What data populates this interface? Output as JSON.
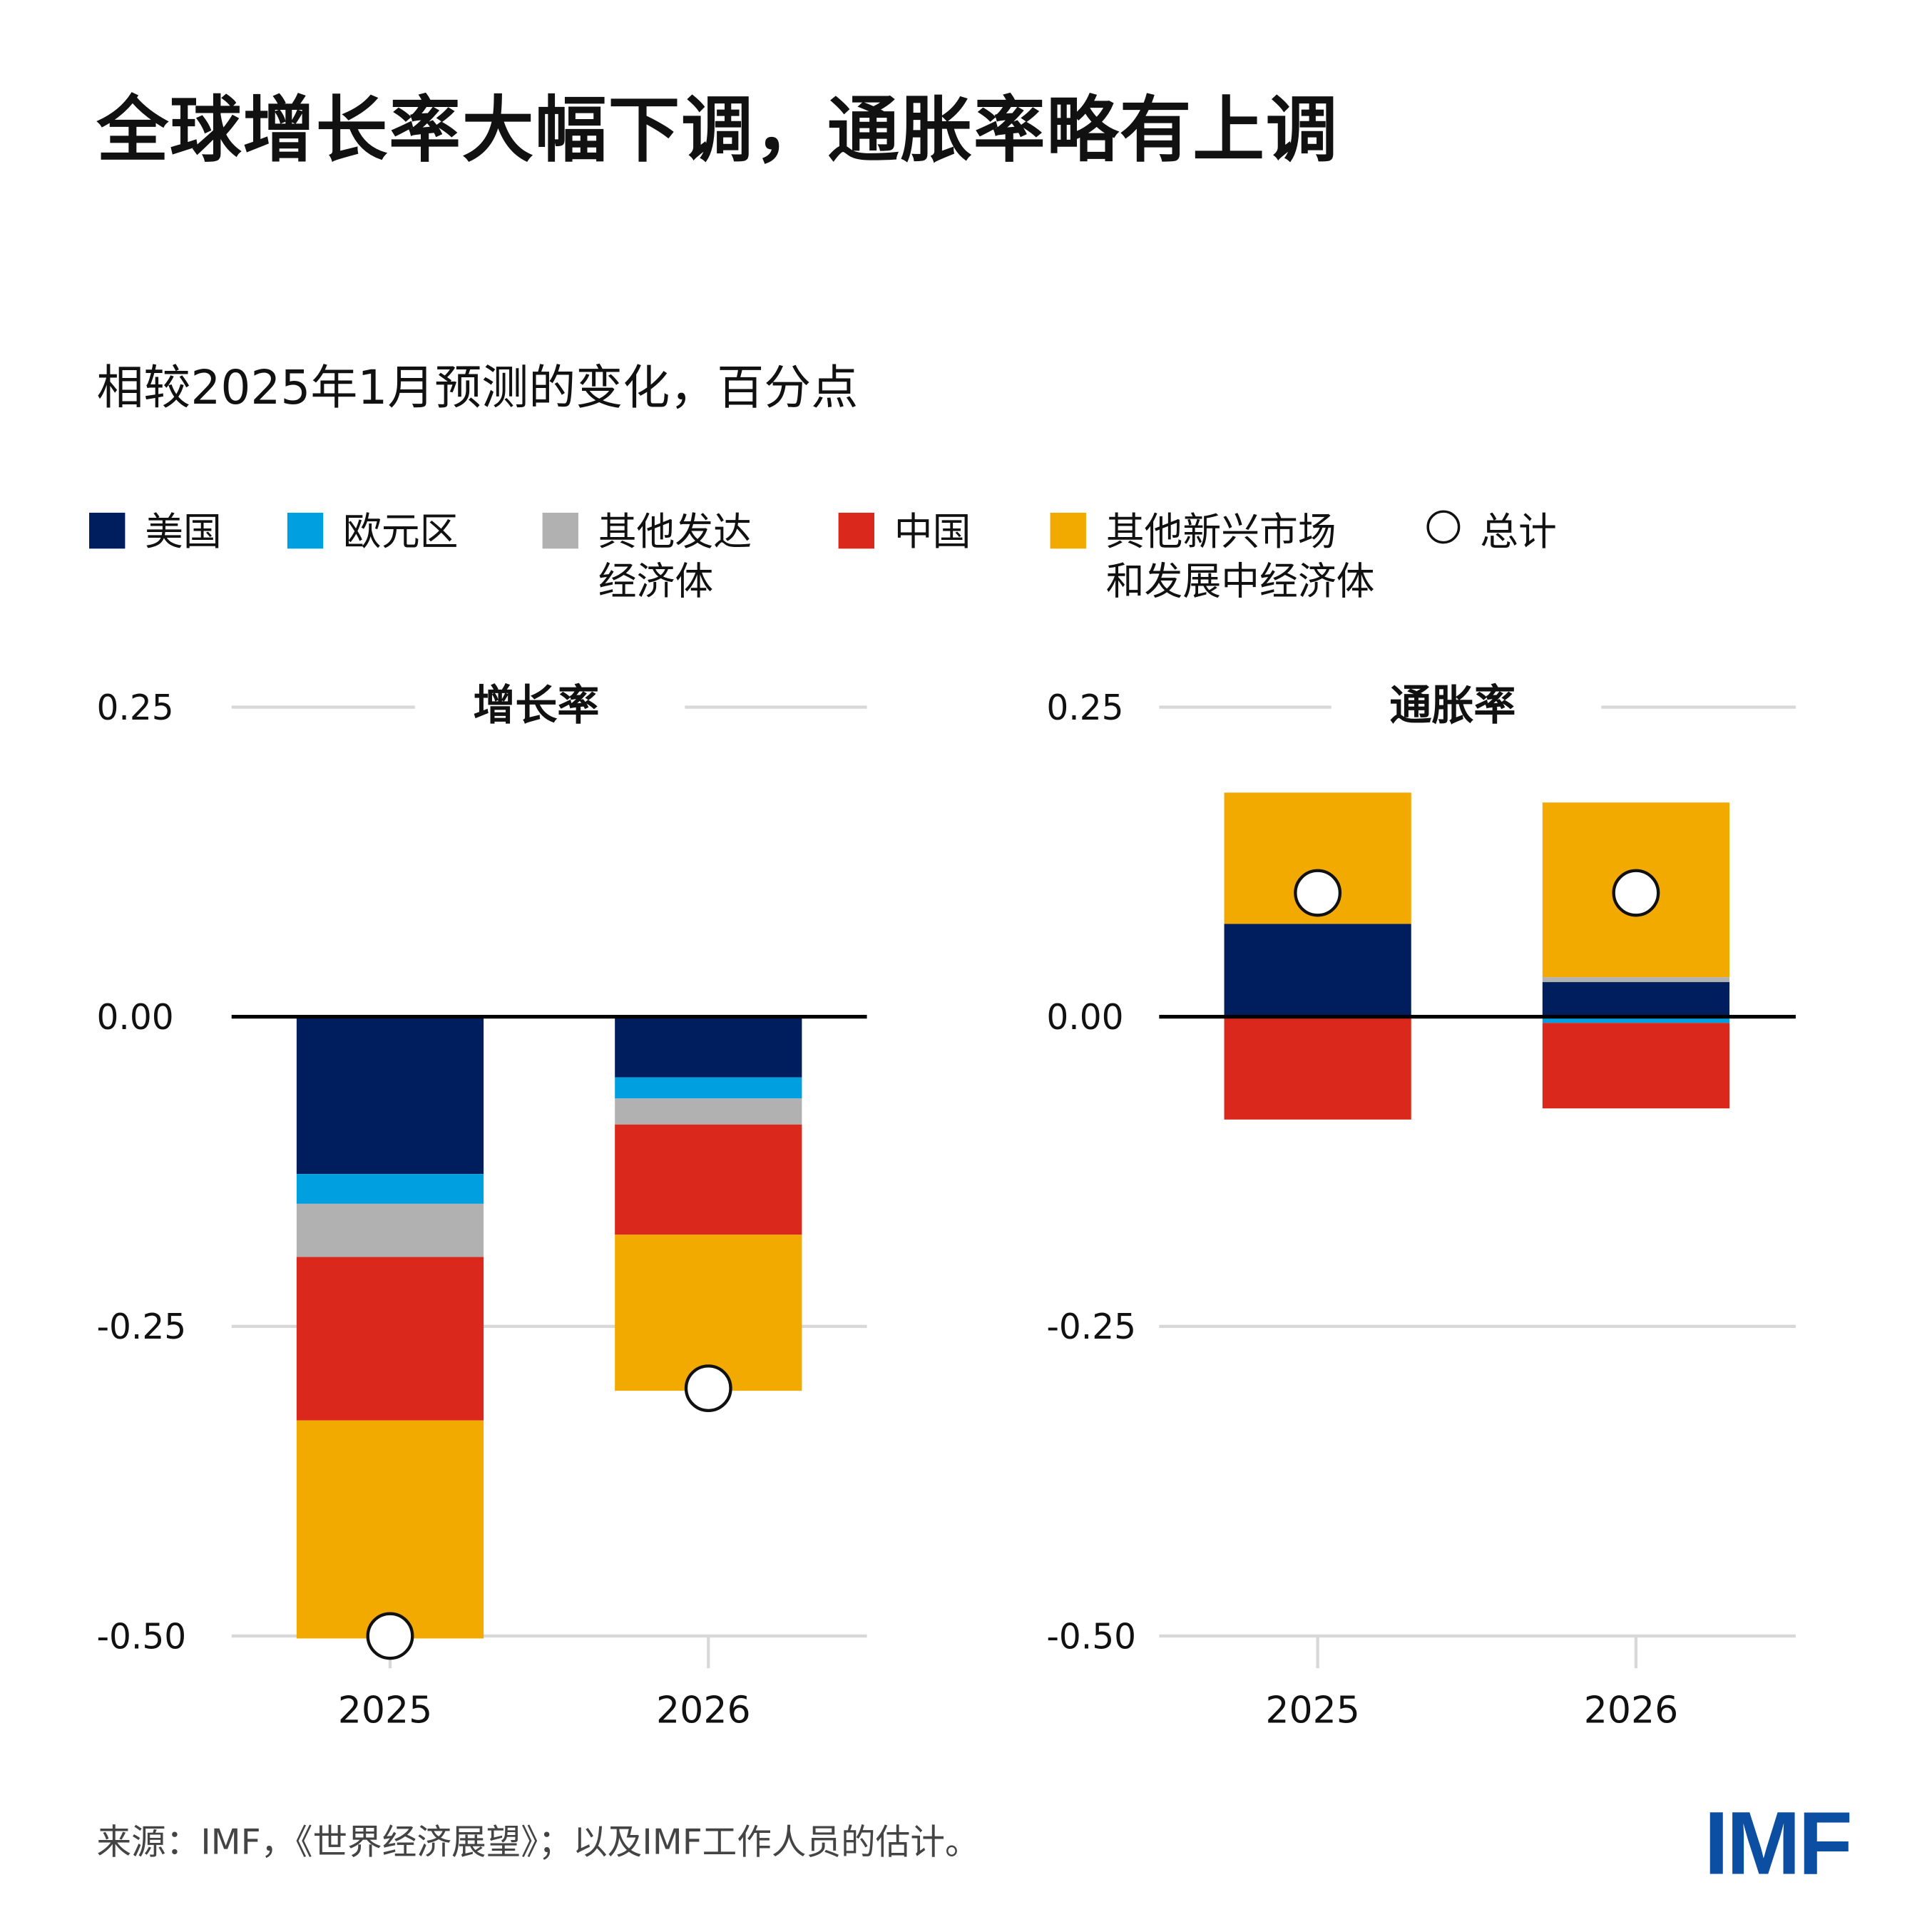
{
  "title": "全球增长率大幅下调，通胀率略有上调",
  "subtitle": "相较2025年1月预测的变化，百分点",
  "source": "来源：IMF，《世界经济展望》；以及IMF工作人员的估计。",
  "logo": "IMF",
  "legend": [
    {
      "label": "美国",
      "color": "#001e5e"
    },
    {
      "label": "欧元区",
      "color": "#009fdf"
    },
    {
      "label": "其他发达\n经济体",
      "color": "#b1b1b1"
    },
    {
      "label": "中国",
      "color": "#da291c"
    },
    {
      "label": "其他新兴市场\n和发展中经济体",
      "color": "#f2a900"
    },
    {
      "label": "总计",
      "marker": "circle"
    }
  ],
  "chart_data": [
    {
      "type": "bar",
      "stacked": true,
      "title": "增长率",
      "categories": [
        "2025",
        "2026"
      ],
      "ylim": [
        -0.5,
        0.25
      ],
      "yticks": [
        "0.25",
        "0.00",
        "-0.25",
        "-0.50"
      ],
      "grid": true,
      "series": [
        {
          "name": "美国",
          "values": [
            -0.127,
            -0.049
          ]
        },
        {
          "name": "欧元区",
          "values": [
            -0.024,
            -0.017
          ]
        },
        {
          "name": "其他发达经济体",
          "values": [
            -0.043,
            -0.021
          ]
        },
        {
          "name": "中国",
          "values": [
            -0.132,
            -0.089
          ]
        },
        {
          "name": "其他新兴市场和发展中经济体",
          "values": [
            -0.176,
            -0.126
          ]
        }
      ],
      "total": {
        "name": "总计",
        "values": [
          -0.5,
          -0.3
        ]
      }
    },
    {
      "type": "bar",
      "stacked": true,
      "title": "通胀率",
      "categories": [
        "2025",
        "2026"
      ],
      "ylim": [
        -0.5,
        0.25
      ],
      "yticks": [
        "0.25",
        "0.00",
        "-0.25",
        "-0.50"
      ],
      "grid": true,
      "series": [
        {
          "name": "美国",
          "values": [
            0.075,
            0.028
          ]
        },
        {
          "name": "欧元区",
          "values": [
            0.0,
            -0.005
          ]
        },
        {
          "name": "其他发达经济体",
          "values": [
            0.0,
            0.004
          ]
        },
        {
          "name": "中国",
          "values": [
            -0.083,
            -0.069
          ]
        },
        {
          "name": "其他新兴市场和发展中经济体",
          "values": [
            0.106,
            0.141
          ]
        }
      ],
      "total": {
        "name": "总计",
        "values": [
          0.1,
          0.1
        ]
      }
    }
  ]
}
